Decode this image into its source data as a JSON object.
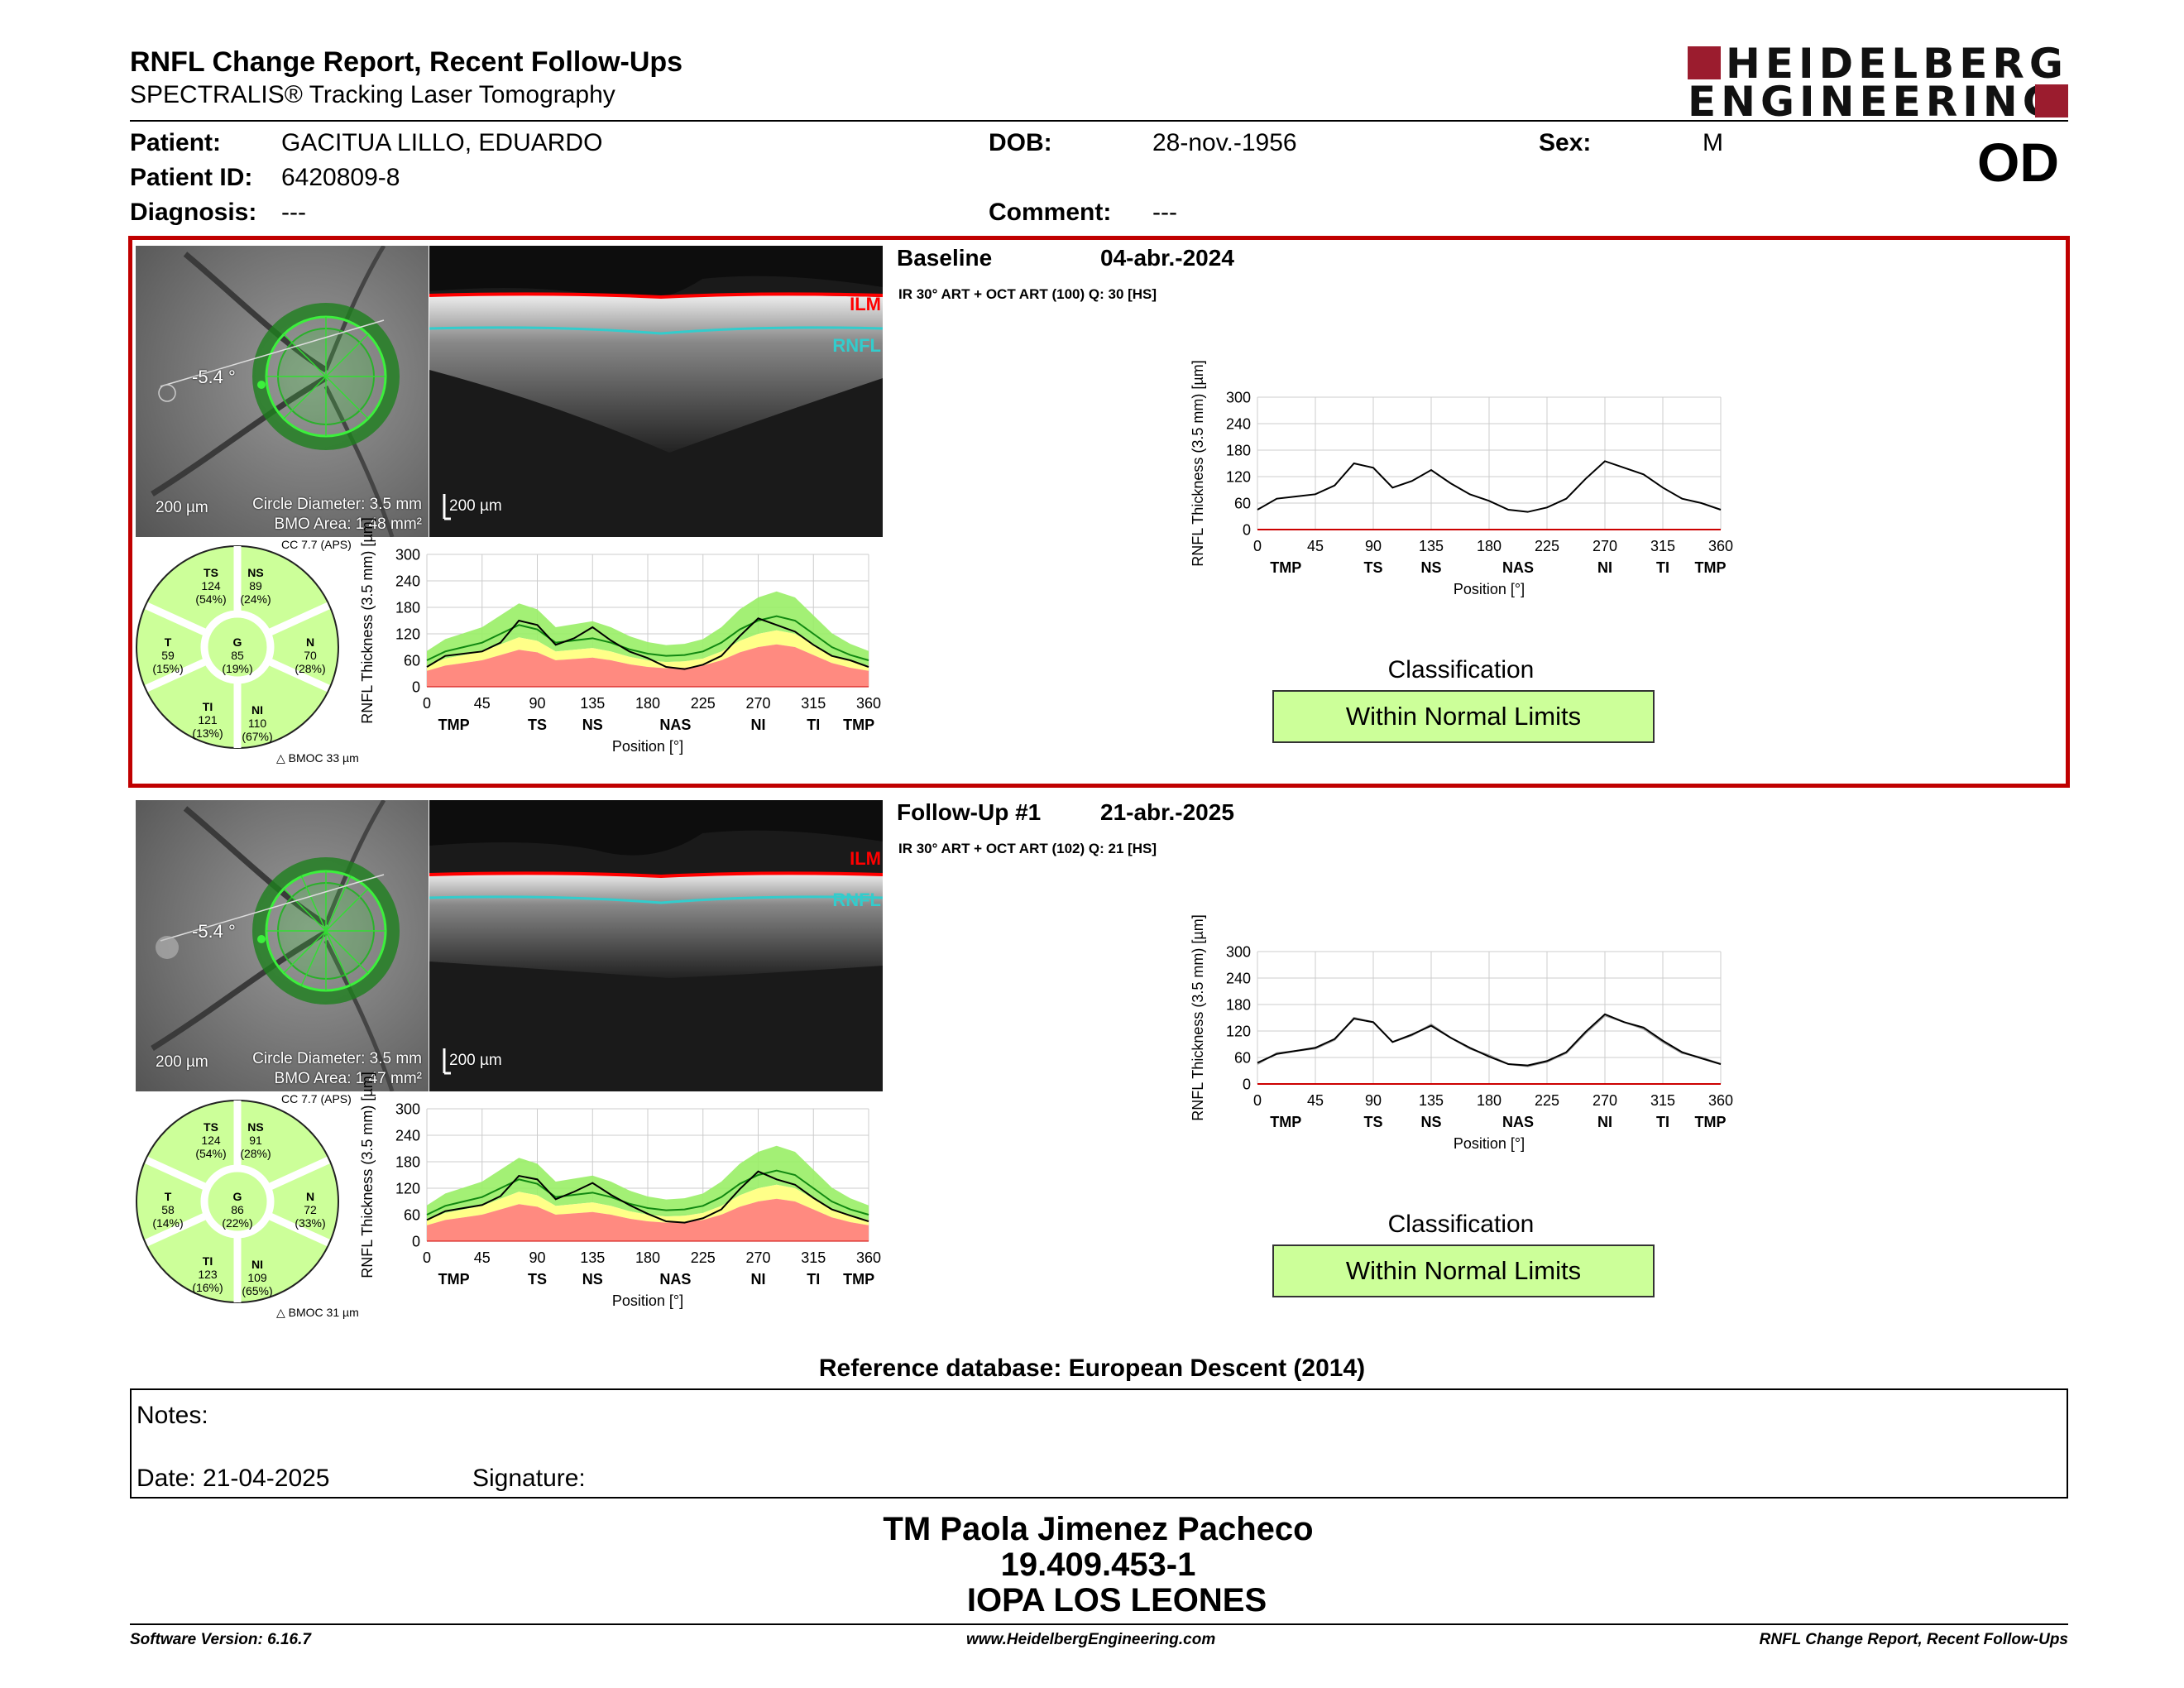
{
  "header": {
    "title": "RNFL Change Report, Recent Follow-Ups",
    "subtitle": "SPECTRALIS® Tracking Laser Tomography",
    "logo_line1": "HEIDELBERG",
    "logo_line2": "ENGINEERING"
  },
  "patient": {
    "patient_label": "Patient:",
    "patient_value": "GACITUA LILLO, EDUARDO",
    "id_label": "Patient ID:",
    "id_value": "6420809-8",
    "diagnosis_label": "Diagnosis:",
    "diagnosis_value": "---",
    "dob_label": "DOB:",
    "dob_value": "28-nov.-1956",
    "comment_label": "Comment:",
    "comment_value": "---",
    "sex_label": "Sex:",
    "sex_value": "M",
    "eye": "OD"
  },
  "colors": {
    "highlight_border": "#c00000",
    "brand": "#9b1c2e",
    "within_normal": "#ccff99",
    "band_green": "#99ee66",
    "band_yellow": "#ffff88",
    "band_red": "#ff8a80",
    "ilm": "#ff0000",
    "rnfl": "#33cccc"
  },
  "exams": [
    {
      "kind": "Baseline",
      "date": "04-abr.-2024",
      "scan_info": "IR 30° ART + OCT ART (100) Q: 30 [HS]",
      "fundus_angle": "-5.4 °",
      "fundus_scale": "200 µm",
      "circle_diameter": "Circle Diameter: 3.5 mm",
      "bmo_area": "BMO Area: 1.48 mm²",
      "oct_scale": "200 µm",
      "ilm_label": "ILM",
      "rnfl_label": "RNFL",
      "cc": "CC 7.7 (APS)",
      "bmoc": "BMOC 33 µm",
      "sectors": {
        "TS": {
          "name": "TS",
          "value": "124",
          "pct": "(54%)"
        },
        "NS": {
          "name": "NS",
          "value": "89",
          "pct": "(24%)"
        },
        "T": {
          "name": "T",
          "value": "59",
          "pct": "(15%)"
        },
        "G": {
          "name": "G",
          "value": "85",
          "pct": "(19%)"
        },
        "N": {
          "name": "N",
          "value": "70",
          "pct": "(28%)"
        },
        "TI": {
          "name": "TI",
          "value": "121",
          "pct": "(13%)"
        },
        "NI": {
          "name": "NI",
          "value": "110",
          "pct": "(67%)"
        }
      },
      "classification_label": "Classification",
      "classification": "Within Normal Limits"
    },
    {
      "kind": "Follow-Up #1",
      "date": "21-abr.-2025",
      "scan_info": "IR 30° ART + OCT ART (102) Q: 21 [HS]",
      "fundus_angle": "-5.4 °",
      "fundus_scale": "200 µm",
      "circle_diameter": "Circle Diameter: 3.5 mm",
      "bmo_area": "BMO Area: 1.47 mm²",
      "oct_scale": "200 µm",
      "ilm_label": "ILM",
      "rnfl_label": "RNFL",
      "cc": "CC 7.7 (APS)",
      "bmoc": "BMOC 31 µm",
      "sectors": {
        "TS": {
          "name": "TS",
          "value": "124",
          "pct": "(54%)"
        },
        "NS": {
          "name": "NS",
          "value": "91",
          "pct": "(28%)"
        },
        "T": {
          "name": "T",
          "value": "58",
          "pct": "(14%)"
        },
        "G": {
          "name": "G",
          "value": "86",
          "pct": "(22%)"
        },
        "N": {
          "name": "N",
          "value": "72",
          "pct": "(33%)"
        },
        "TI": {
          "name": "TI",
          "value": "123",
          "pct": "(16%)"
        },
        "NI": {
          "name": "NI",
          "value": "109",
          "pct": "(65%)"
        }
      },
      "classification_label": "Classification",
      "classification": "Within Normal Limits"
    }
  ],
  "chart_data": [
    {
      "type": "line",
      "name": "baseline-normative",
      "ylabel": "RNFL Thickness (3.5 mm) [µm]",
      "xlabel": "Position [°]",
      "xlim": [
        0,
        360
      ],
      "ylim": [
        0,
        300
      ],
      "x_ticks": [
        "0",
        "45",
        "90",
        "135",
        "180",
        "225",
        "270",
        "315",
        "360"
      ],
      "y_ticks": [
        "0",
        "60",
        "120",
        "180",
        "240",
        "300"
      ],
      "sector_labels": [
        "TMP",
        "TS",
        "NS",
        "NAS",
        "NI",
        "TI",
        "TMP"
      ],
      "x": [
        0,
        15,
        30,
        45,
        60,
        75,
        90,
        105,
        120,
        135,
        150,
        165,
        180,
        195,
        210,
        225,
        240,
        255,
        270,
        285,
        300,
        315,
        330,
        345,
        360
      ],
      "values": [
        45,
        70,
        75,
        80,
        100,
        150,
        140,
        95,
        110,
        135,
        105,
        80,
        65,
        45,
        40,
        50,
        70,
        115,
        155,
        140,
        125,
        95,
        70,
        60,
        45
      ],
      "reference_mean": [
        60,
        80,
        90,
        100,
        120,
        140,
        130,
        100,
        105,
        110,
        100,
        85,
        75,
        70,
        72,
        80,
        100,
        130,
        150,
        160,
        150,
        120,
        90,
        72,
        60
      ]
    },
    {
      "type": "line",
      "name": "baseline-profile",
      "ylabel": "RNFL Thickness (3.5 mm) [µm]",
      "xlabel": "Position [°]",
      "xlim": [
        0,
        360
      ],
      "ylim": [
        0,
        300
      ],
      "x_ticks": [
        "0",
        "45",
        "90",
        "135",
        "180",
        "225",
        "270",
        "315",
        "360"
      ],
      "y_ticks": [
        "0",
        "60",
        "120",
        "180",
        "240",
        "300"
      ],
      "sector_labels": [
        "TMP",
        "TS",
        "NS",
        "NAS",
        "NI",
        "TI",
        "TMP"
      ],
      "x": [
        0,
        15,
        30,
        45,
        60,
        75,
        90,
        105,
        120,
        135,
        150,
        165,
        180,
        195,
        210,
        225,
        240,
        255,
        270,
        285,
        300,
        315,
        330,
        345,
        360
      ],
      "values": [
        45,
        70,
        75,
        80,
        100,
        150,
        140,
        95,
        110,
        135,
        105,
        80,
        65,
        45,
        40,
        50,
        70,
        115,
        155,
        140,
        125,
        95,
        70,
        60,
        45
      ]
    },
    {
      "type": "line",
      "name": "followup-normative",
      "ylabel": "RNFL Thickness (3.5 mm) [µm]",
      "xlabel": "Position [°]",
      "xlim": [
        0,
        360
      ],
      "ylim": [
        0,
        300
      ],
      "x_ticks": [
        "0",
        "45",
        "90",
        "135",
        "180",
        "225",
        "270",
        "315",
        "360"
      ],
      "y_ticks": [
        "0",
        "60",
        "120",
        "180",
        "240",
        "300"
      ],
      "sector_labels": [
        "TMP",
        "TS",
        "NS",
        "NAS",
        "NI",
        "TI",
        "TMP"
      ],
      "x": [
        0,
        15,
        30,
        45,
        60,
        75,
        90,
        105,
        120,
        135,
        150,
        165,
        180,
        195,
        210,
        225,
        240,
        255,
        270,
        285,
        300,
        315,
        330,
        345,
        360
      ],
      "values": [
        48,
        68,
        75,
        82,
        102,
        148,
        140,
        95,
        112,
        132,
        105,
        82,
        62,
        45,
        42,
        52,
        72,
        118,
        158,
        140,
        128,
        98,
        72,
        58,
        45
      ],
      "reference_mean": [
        60,
        80,
        90,
        100,
        120,
        140,
        130,
        100,
        105,
        110,
        100,
        85,
        75,
        70,
        72,
        80,
        100,
        130,
        150,
        160,
        150,
        120,
        90,
        72,
        60
      ]
    },
    {
      "type": "line",
      "name": "followup-profile",
      "ylabel": "RNFL Thickness (3.5 mm) [µm]",
      "xlabel": "Position [°]",
      "xlim": [
        0,
        360
      ],
      "ylim": [
        0,
        300
      ],
      "x_ticks": [
        "0",
        "45",
        "90",
        "135",
        "180",
        "225",
        "270",
        "315",
        "360"
      ],
      "y_ticks": [
        "0",
        "60",
        "120",
        "180",
        "240",
        "300"
      ],
      "sector_labels": [
        "TMP",
        "TS",
        "NS",
        "NAS",
        "NI",
        "TI",
        "TMP"
      ],
      "x": [
        0,
        15,
        30,
        45,
        60,
        75,
        90,
        105,
        120,
        135,
        150,
        165,
        180,
        195,
        210,
        225,
        240,
        255,
        270,
        285,
        300,
        315,
        330,
        345,
        360
      ],
      "values": [
        48,
        68,
        75,
        82,
        102,
        148,
        140,
        95,
        112,
        132,
        105,
        82,
        62,
        45,
        42,
        52,
        72,
        118,
        158,
        140,
        128,
        98,
        72,
        58,
        45
      ],
      "baseline_values": [
        45,
        70,
        75,
        80,
        100,
        150,
        140,
        95,
        110,
        135,
        105,
        80,
        65,
        45,
        40,
        50,
        70,
        115,
        155,
        140,
        125,
        95,
        70,
        60,
        45
      ]
    }
  ],
  "reference_db": "Reference database: European Descent (2014)",
  "notes": {
    "notes_label": "Notes:",
    "date_label": "Date: 21-04-2025",
    "signature_label": "Signature:"
  },
  "signer": {
    "name": "TM Paola Jimenez Pacheco",
    "id": "19.409.453-1",
    "institution": "IOPA LOS LEONES"
  },
  "footer": {
    "software": "Software Version: 6.16.7",
    "website": "www.HeidelbergEngineering.com",
    "report_name": "RNFL Change Report, Recent Follow-Ups"
  }
}
